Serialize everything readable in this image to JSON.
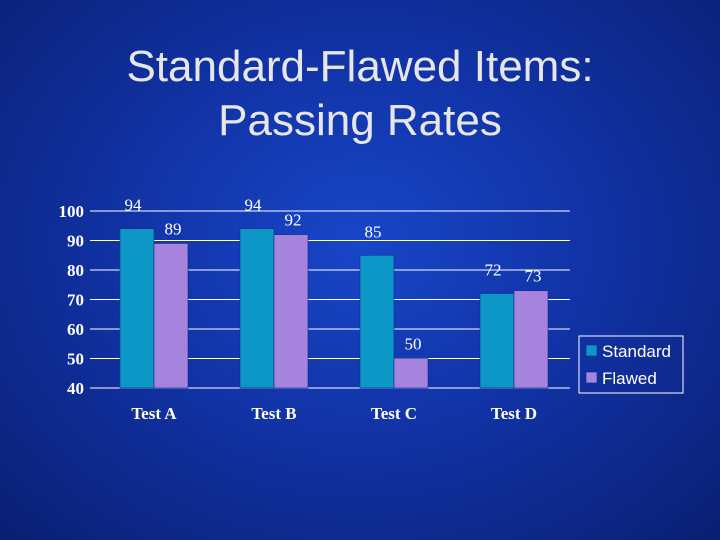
{
  "slide": {
    "title_line1": "Standard-Flawed Items:",
    "title_line2": "Passing Rates"
  },
  "chart_data": {
    "type": "bar",
    "categories": [
      "Test A",
      "Test B",
      "Test C",
      "Test D"
    ],
    "series": [
      {
        "name": "Standard",
        "values": [
          94,
          94,
          85,
          72
        ],
        "color": "#0d97c7"
      },
      {
        "name": "Flawed",
        "values": [
          89,
          92,
          50,
          73
        ],
        "color": "#a683dc"
      }
    ],
    "ylim": [
      40,
      100
    ],
    "yticks": [
      40,
      50,
      60,
      70,
      80,
      90,
      100
    ],
    "grid": true,
    "legend": "right"
  }
}
